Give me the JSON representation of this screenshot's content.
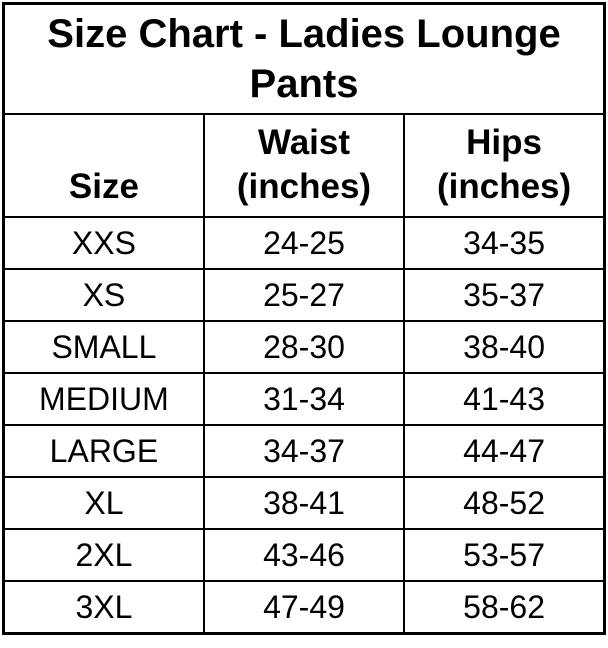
{
  "colors": {
    "text": "#000000",
    "border": "#000000",
    "background": "#ffffff"
  },
  "chart_data": {
    "type": "table",
    "title": "Size Chart - Ladies Lounge Pants",
    "columns": [
      "Size",
      "Waist (inches)",
      "Hips (inches)"
    ],
    "rows": [
      [
        "XXS",
        "24-25",
        "34-35"
      ],
      [
        "XS",
        "25-27",
        "35-37"
      ],
      [
        "SMALL",
        "28-30",
        "38-40"
      ],
      [
        "MEDIUM",
        "31-34",
        "41-43"
      ],
      [
        "LARGE",
        "34-37",
        "44-47"
      ],
      [
        "XL",
        "38-41",
        "48-52"
      ],
      [
        "2XL",
        "43-46",
        "53-57"
      ],
      [
        "3XL",
        "47-49",
        "58-62"
      ]
    ]
  }
}
